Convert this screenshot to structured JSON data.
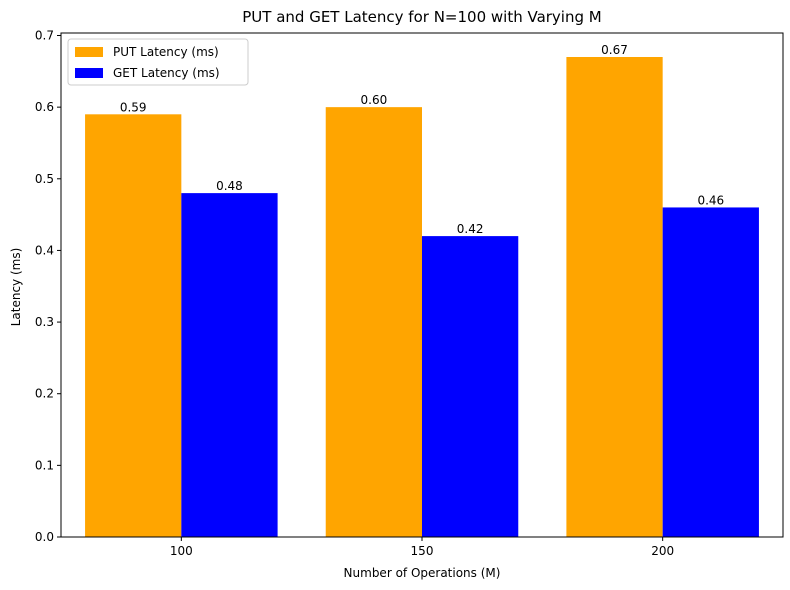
{
  "chart_data": {
    "type": "bar",
    "title": "PUT and GET Latency for N=100 with Varying M",
    "xlabel": "Number of Operations (M)",
    "ylabel": "Latency (ms)",
    "categories": [
      "100",
      "150",
      "200"
    ],
    "series": [
      {
        "name": "PUT Latency (ms)",
        "values": [
          0.59,
          0.6,
          0.67
        ],
        "color": "#ffa500",
        "labels": [
          "0.59",
          "0.60",
          "0.67"
        ]
      },
      {
        "name": "GET Latency (ms)",
        "values": [
          0.48,
          0.42,
          0.46
        ],
        "color": "#0000ff",
        "labels": [
          "0.48",
          "0.42",
          "0.46"
        ]
      }
    ],
    "ylim": [
      0,
      0.7035
    ],
    "yticks": [
      {
        "value": 0.0,
        "label": "0.0"
      },
      {
        "value": 0.1,
        "label": "0.1"
      },
      {
        "value": 0.2,
        "label": "0.2"
      },
      {
        "value": 0.3,
        "label": "0.3"
      },
      {
        "value": 0.4,
        "label": "0.4"
      },
      {
        "value": 0.5,
        "label": "0.5"
      },
      {
        "value": 0.6,
        "label": "0.6"
      },
      {
        "value": 0.7,
        "label": "0.7"
      }
    ],
    "grid": false,
    "legend_position": "top-left"
  }
}
